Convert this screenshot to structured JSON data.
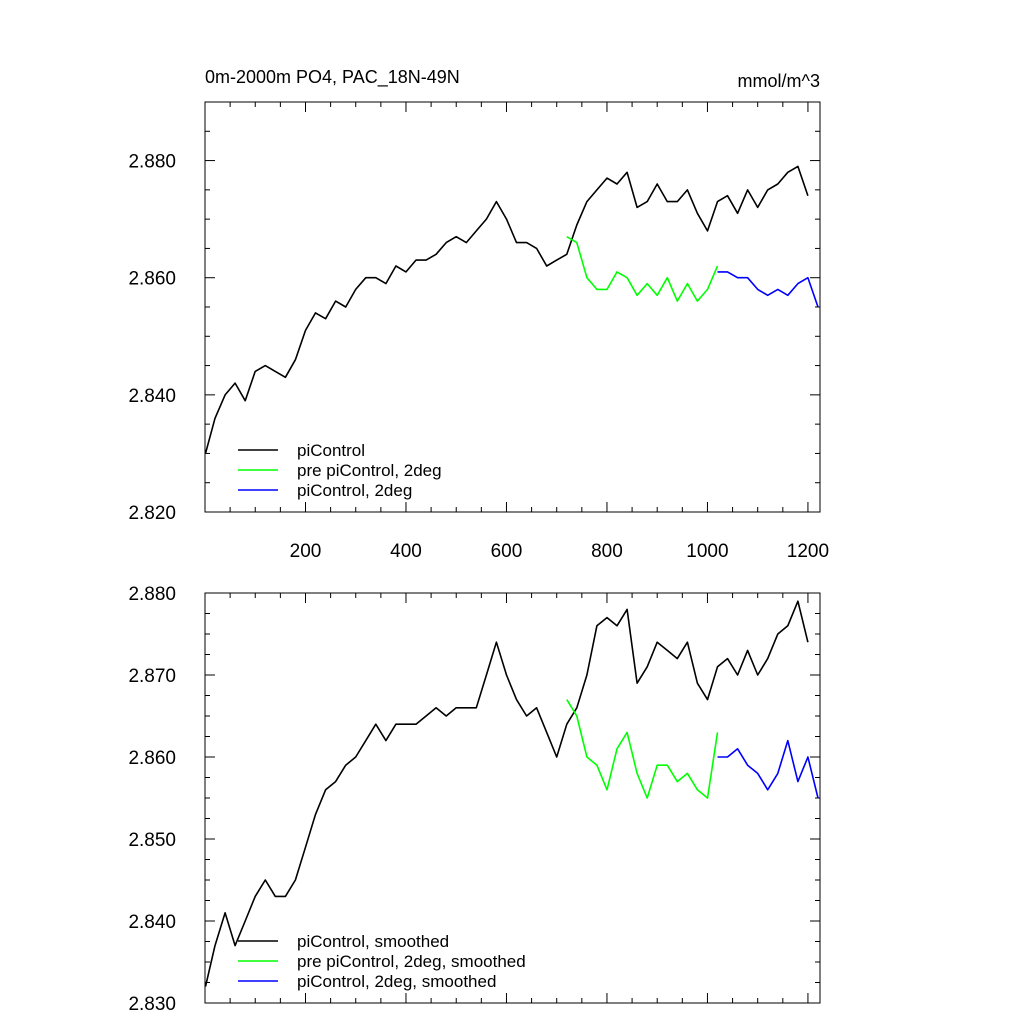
{
  "chart_data": [
    {
      "type": "line",
      "title": "0m-2000m PO4, PAC_18N-49N",
      "units": "mmol/m^3",
      "xlim": [
        0,
        1224
      ],
      "ylim": [
        2.82,
        2.89
      ],
      "xticks": [
        200,
        400,
        600,
        800,
        1000,
        1200
      ],
      "xtick_labels": [
        "200",
        "400",
        "600",
        "800",
        "1000",
        "1200"
      ],
      "yticks": [
        2.82,
        2.84,
        2.86,
        2.88
      ],
      "ytick_labels": [
        "2.820",
        "2.840",
        "2.860",
        "2.880"
      ],
      "legend_position": "bottom-left",
      "series": [
        {
          "name": "piControl",
          "color": "#000000",
          "x": [
            1,
            20,
            40,
            60,
            80,
            100,
            120,
            140,
            160,
            180,
            200,
            220,
            240,
            260,
            280,
            300,
            320,
            340,
            360,
            380,
            400,
            420,
            440,
            460,
            480,
            500,
            520,
            540,
            560,
            580,
            600,
            620,
            640,
            660,
            680,
            700,
            720,
            740,
            760,
            780,
            800,
            820,
            840,
            860,
            880,
            900,
            920,
            940,
            960,
            980,
            1000,
            1020,
            1040,
            1060,
            1080,
            1100,
            1120,
            1140,
            1160,
            1180,
            1200
          ],
          "values": [
            2.83,
            2.836,
            2.84,
            2.842,
            2.839,
            2.844,
            2.845,
            2.844,
            2.843,
            2.846,
            2.851,
            2.854,
            2.853,
            2.856,
            2.855,
            2.858,
            2.86,
            2.86,
            2.859,
            2.862,
            2.861,
            2.863,
            2.863,
            2.864,
            2.866,
            2.867,
            2.866,
            2.868,
            2.87,
            2.873,
            2.87,
            2.866,
            2.866,
            2.865,
            2.862,
            2.863,
            2.864,
            2.869,
            2.873,
            2.875,
            2.877,
            2.876,
            2.878,
            2.872,
            2.873,
            2.876,
            2.873,
            2.873,
            2.875,
            2.871,
            2.868,
            2.873,
            2.874,
            2.871,
            2.875,
            2.872,
            2.875,
            2.876,
            2.878,
            2.879,
            2.874
          ]
        },
        {
          "name": "pre piControl, 2deg",
          "color": "#00ff00",
          "x": [
            720,
            740,
            760,
            780,
            800,
            820,
            840,
            860,
            880,
            900,
            920,
            940,
            960,
            980,
            1000,
            1020
          ],
          "values": [
            2.867,
            2.866,
            2.86,
            2.858,
            2.858,
            2.861,
            2.86,
            2.857,
            2.859,
            2.857,
            2.86,
            2.856,
            2.859,
            2.856,
            2.858,
            2.862
          ]
        },
        {
          "name": "piControl, 2deg",
          "color": "#0000ff",
          "x": [
            1020,
            1040,
            1060,
            1080,
            1100,
            1120,
            1140,
            1160,
            1180,
            1200,
            1220
          ],
          "values": [
            2.861,
            2.861,
            2.86,
            2.86,
            2.858,
            2.857,
            2.858,
            2.857,
            2.859,
            2.86,
            2.855
          ]
        }
      ]
    },
    {
      "type": "line",
      "title": "",
      "xlim": [
        0,
        1224
      ],
      "ylim": [
        2.83,
        2.88
      ],
      "xticks": [
        200,
        400,
        600,
        800,
        1000,
        1200
      ],
      "yticks": [
        2.83,
        2.84,
        2.85,
        2.86,
        2.87,
        2.88
      ],
      "ytick_labels": [
        "2.830",
        "2.840",
        "2.850",
        "2.860",
        "2.870",
        "2.880"
      ],
      "legend_position": "bottom-left",
      "series": [
        {
          "name": "piControl, smoothed",
          "color": "#000000",
          "x": [
            1,
            20,
            40,
            60,
            80,
            100,
            120,
            140,
            160,
            180,
            200,
            220,
            240,
            260,
            280,
            300,
            320,
            340,
            360,
            380,
            400,
            420,
            440,
            460,
            480,
            500,
            520,
            540,
            560,
            580,
            600,
            620,
            640,
            660,
            680,
            700,
            720,
            740,
            760,
            780,
            800,
            820,
            840,
            860,
            880,
            900,
            920,
            940,
            960,
            980,
            1000,
            1020,
            1040,
            1060,
            1080,
            1100,
            1120,
            1140,
            1160,
            1180,
            1200
          ],
          "values": [
            2.832,
            2.837,
            2.841,
            2.837,
            2.84,
            2.843,
            2.845,
            2.843,
            2.843,
            2.845,
            2.849,
            2.853,
            2.856,
            2.857,
            2.859,
            2.86,
            2.862,
            2.864,
            2.862,
            2.864,
            2.864,
            2.864,
            2.865,
            2.866,
            2.865,
            2.866,
            2.866,
            2.866,
            2.87,
            2.874,
            2.87,
            2.867,
            2.865,
            2.866,
            2.863,
            2.86,
            2.864,
            2.866,
            2.87,
            2.876,
            2.877,
            2.876,
            2.878,
            2.869,
            2.871,
            2.874,
            2.873,
            2.872,
            2.874,
            2.869,
            2.867,
            2.871,
            2.872,
            2.87,
            2.873,
            2.87,
            2.872,
            2.875,
            2.876,
            2.879,
            2.874
          ]
        },
        {
          "name": "pre piControl, 2deg, smoothed",
          "color": "#00ff00",
          "x": [
            720,
            740,
            760,
            780,
            800,
            820,
            840,
            860,
            880,
            900,
            920,
            940,
            960,
            980,
            1000,
            1020
          ],
          "values": [
            2.867,
            2.865,
            2.86,
            2.859,
            2.856,
            2.861,
            2.863,
            2.858,
            2.855,
            2.859,
            2.859,
            2.857,
            2.858,
            2.856,
            2.855,
            2.863
          ]
        },
        {
          "name": "piControl, 2deg, smoothed",
          "color": "#0000ff",
          "x": [
            1020,
            1040,
            1060,
            1080,
            1100,
            1120,
            1140,
            1160,
            1180,
            1200,
            1220
          ],
          "values": [
            2.86,
            2.86,
            2.861,
            2.859,
            2.858,
            2.856,
            2.858,
            2.862,
            2.857,
            2.86,
            2.855
          ]
        }
      ]
    }
  ]
}
